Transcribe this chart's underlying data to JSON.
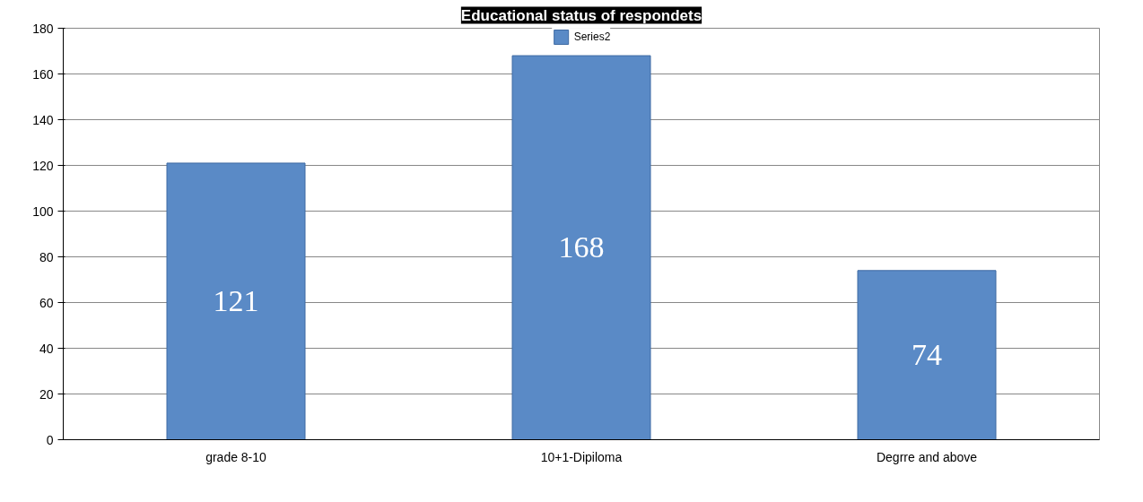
{
  "chart_data": {
    "type": "bar",
    "title": "Educational status of respondets",
    "categories": [
      "grade 8-10",
      "10+1-Dipiloma",
      "Degrre and above"
    ],
    "series": [
      {
        "name": "Series2",
        "color": "#5a8ac6",
        "values": [
          121,
          168,
          74
        ]
      }
    ],
    "ylim": [
      0,
      180
    ],
    "yticks": [
      0,
      20,
      40,
      60,
      80,
      100,
      120,
      140,
      160,
      180
    ],
    "grid": "y",
    "legend": "top",
    "data_labels": true
  }
}
